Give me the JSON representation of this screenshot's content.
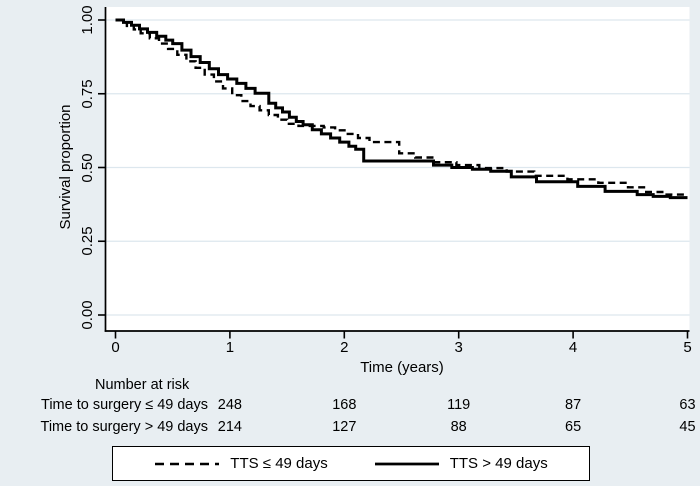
{
  "figure": {
    "background": "#e8eef2",
    "plot_background": "#ffffff",
    "grid_color": "#dde7ee",
    "axis_color": "#000000",
    "line_color": "#000000"
  },
  "chart_data": {
    "type": "line",
    "subtype": "kaplan-meier-step",
    "title": "",
    "xlabel": "Time (years)",
    "ylabel": "Survival proportion",
    "xlim": [
      0,
      5
    ],
    "ylim": [
      0.0,
      1.0
    ],
    "xticks": [
      "0",
      "1",
      "2",
      "3",
      "4",
      "5"
    ],
    "yticks": [
      "0.00",
      "0.25",
      "0.50",
      "0.75",
      "1.00"
    ],
    "ytick_values": [
      0,
      0.25,
      0.5,
      0.75,
      1.0
    ],
    "xtick_values": [
      0,
      1,
      2,
      3,
      4,
      5
    ],
    "grid": "horizontal",
    "legend_position": "bottom-outside-box",
    "series": [
      {
        "name": "TTS ≤ 49 days",
        "style": "dashed",
        "points": [
          [
            0,
            1.0
          ],
          [
            0.05,
            0.992
          ],
          [
            0.1,
            0.98
          ],
          [
            0.16,
            0.968
          ],
          [
            0.22,
            0.955
          ],
          [
            0.3,
            0.938
          ],
          [
            0.38,
            0.92
          ],
          [
            0.46,
            0.902
          ],
          [
            0.54,
            0.882
          ],
          [
            0.62,
            0.86
          ],
          [
            0.7,
            0.838
          ],
          [
            0.78,
            0.815
          ],
          [
            0.86,
            0.792
          ],
          [
            0.94,
            0.768
          ],
          [
            1.02,
            0.745
          ],
          [
            1.1,
            0.725
          ],
          [
            1.18,
            0.708
          ],
          [
            1.26,
            0.694
          ],
          [
            1.34,
            0.678
          ],
          [
            1.42,
            0.662
          ],
          [
            1.5,
            0.648
          ],
          [
            1.6,
            0.641
          ],
          [
            1.82,
            0.636
          ],
          [
            1.92,
            0.626
          ],
          [
            2.02,
            0.614
          ],
          [
            2.12,
            0.6
          ],
          [
            2.22,
            0.586
          ],
          [
            2.48,
            0.548
          ],
          [
            2.62,
            0.534
          ],
          [
            2.78,
            0.518
          ],
          [
            2.98,
            0.508
          ],
          [
            3.18,
            0.498
          ],
          [
            3.42,
            0.486
          ],
          [
            3.66,
            0.472
          ],
          [
            3.95,
            0.46
          ],
          [
            4.22,
            0.448
          ],
          [
            4.48,
            0.433
          ],
          [
            4.62,
            0.417
          ],
          [
            4.78,
            0.408
          ],
          [
            5.0,
            0.405
          ]
        ]
      },
      {
        "name": "TTS > 49 days",
        "style": "solid",
        "points": [
          [
            0,
            1.0
          ],
          [
            0.07,
            0.992
          ],
          [
            0.14,
            0.982
          ],
          [
            0.21,
            0.97
          ],
          [
            0.28,
            0.958
          ],
          [
            0.36,
            0.945
          ],
          [
            0.44,
            0.932
          ],
          [
            0.5,
            0.92
          ],
          [
            0.58,
            0.898
          ],
          [
            0.66,
            0.876
          ],
          [
            0.74,
            0.856
          ],
          [
            0.82,
            0.835
          ],
          [
            0.9,
            0.815
          ],
          [
            0.98,
            0.8
          ],
          [
            1.06,
            0.785
          ],
          [
            1.14,
            0.768
          ],
          [
            1.22,
            0.752
          ],
          [
            1.34,
            0.718
          ],
          [
            1.4,
            0.702
          ],
          [
            1.46,
            0.688
          ],
          [
            1.52,
            0.67
          ],
          [
            1.58,
            0.656
          ],
          [
            1.64,
            0.645
          ],
          [
            1.72,
            0.628
          ],
          [
            1.8,
            0.614
          ],
          [
            1.88,
            0.6
          ],
          [
            1.96,
            0.586
          ],
          [
            2.04,
            0.572
          ],
          [
            2.1,
            0.562
          ],
          [
            2.17,
            0.522
          ],
          [
            2.78,
            0.508
          ],
          [
            2.94,
            0.5
          ],
          [
            3.12,
            0.494
          ],
          [
            3.28,
            0.487
          ],
          [
            3.46,
            0.468
          ],
          [
            3.68,
            0.452
          ],
          [
            4.04,
            0.436
          ],
          [
            4.28,
            0.419
          ],
          [
            4.56,
            0.408
          ],
          [
            4.7,
            0.402
          ],
          [
            4.85,
            0.398
          ],
          [
            5.0,
            0.398
          ]
        ]
      }
    ],
    "risk_table": {
      "title": "Number at risk",
      "count_positions_years": [
        1,
        2,
        3,
        4,
        5
      ],
      "rows": [
        {
          "label": "Time to surgery ≤ 49 days",
          "counts": [
            "248",
            "168",
            "119",
            "87",
            "63"
          ]
        },
        {
          "label": "Time to surgery > 49 days",
          "counts": [
            "214",
            "127",
            "88",
            "65",
            "45"
          ]
        }
      ]
    },
    "legend": [
      {
        "label": "TTS ≤ 49 days",
        "style": "dashed"
      },
      {
        "label": "TTS > 49 days",
        "style": "solid"
      }
    ]
  }
}
